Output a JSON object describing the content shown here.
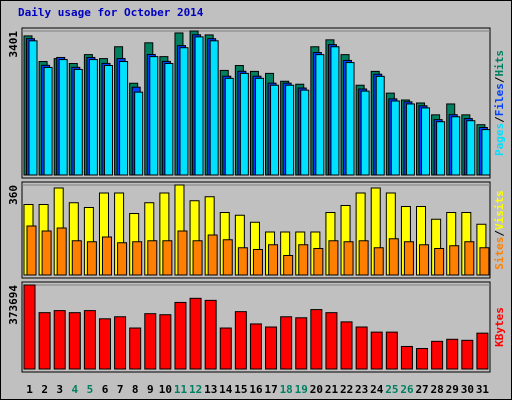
{
  "chart_data": [
    {
      "type": "bar",
      "title": "Daily usage for October 2014",
      "legend_separator": "/",
      "ylim": [
        0,
        3401
      ],
      "yticks": [
        3401
      ],
      "series": [
        {
          "name": "Hits",
          "color": "#008060",
          "values": [
            3285,
            2680,
            2749,
            2633,
            2843,
            2749,
            3029,
            2167,
            3122,
            2796,
            3355,
            3401,
            3309,
            2470,
            2586,
            2447,
            2400,
            2214,
            2144,
            3029,
            3192,
            2843,
            2120,
            2447,
            1934,
            1771,
            1701,
            1421,
            1678,
            1421,
            1188
          ]
        },
        {
          "name": "Files",
          "color": "#0040ff",
          "values": [
            3219,
            2590,
            2776,
            2543,
            2776,
            2636,
            2749,
            2074,
            2846,
            2683,
            3056,
            3312,
            3219,
            2333,
            2450,
            2333,
            2170,
            2170,
            2054,
            2893,
            3079,
            2706,
            2031,
            2380,
            1798,
            1728,
            1634,
            1308,
            1425,
            1332,
            1122
          ]
        },
        {
          "name": "Pages",
          "color": "#00e0ff",
          "values": [
            3169,
            2540,
            2726,
            2493,
            2726,
            2586,
            2680,
            1957,
            2796,
            2633,
            3006,
            3262,
            3169,
            2283,
            2400,
            2283,
            2120,
            2120,
            2004,
            2843,
            3029,
            2656,
            1981,
            2330,
            1748,
            1678,
            1584,
            1258,
            1375,
            1282,
            1072
          ]
        }
      ]
    },
    {
      "type": "bar",
      "ylim": [
        0,
        360
      ],
      "yticks": [
        360
      ],
      "series": [
        {
          "name": "Visits",
          "color": "#ffff00",
          "values": [
            282,
            282,
            348,
            289,
            270,
            328,
            328,
            246,
            289,
            328,
            360,
            297,
            313,
            250,
            239,
            211,
            172,
            172,
            172,
            172,
            250,
            278,
            328,
            348,
            328,
            274,
            274,
            223,
            250,
            250,
            203
          ]
        },
        {
          "name": "Sites",
          "color": "#ff8000",
          "values": [
            196,
            176,
            188,
            137,
            133,
            152,
            129,
            133,
            137,
            137,
            176,
            137,
            160,
            141,
            109,
            102,
            121,
            78,
            121,
            106,
            137,
            133,
            137,
            109,
            145,
            133,
            121,
            106,
            117,
            133,
            109
          ]
        }
      ]
    },
    {
      "type": "bar",
      "ylim": [
        0,
        373694
      ],
      "yticks": [
        373694
      ],
      "categories": [
        "1",
        "2",
        "3",
        "4",
        "5",
        "6",
        "7",
        "8",
        "9",
        "10",
        "11",
        "12",
        "13",
        "14",
        "15",
        "16",
        "17",
        "18",
        "19",
        "20",
        "21",
        "22",
        "23",
        "24",
        "25",
        "26",
        "27",
        "28",
        "29",
        "30",
        "31"
      ],
      "weekend": [
        "4",
        "5",
        "11",
        "12",
        "18",
        "19",
        "25",
        "26"
      ],
      "weekend_color": "#008060",
      "series": [
        {
          "name": "KBytes",
          "color": "#ff0000",
          "values": [
            373694,
            250635,
            259749,
            250635,
            259749,
            223293,
            232407,
            182280,
            246078,
            241521,
            296205,
            314433,
            305319,
            182280,
            255192,
            200508,
            186837,
            232407,
            227850,
            264306,
            250635,
            209622,
            186837,
            164052,
            164052,
            100254,
            91140,
            123039,
            132153,
            127596,
            159495
          ]
        }
      ]
    }
  ]
}
